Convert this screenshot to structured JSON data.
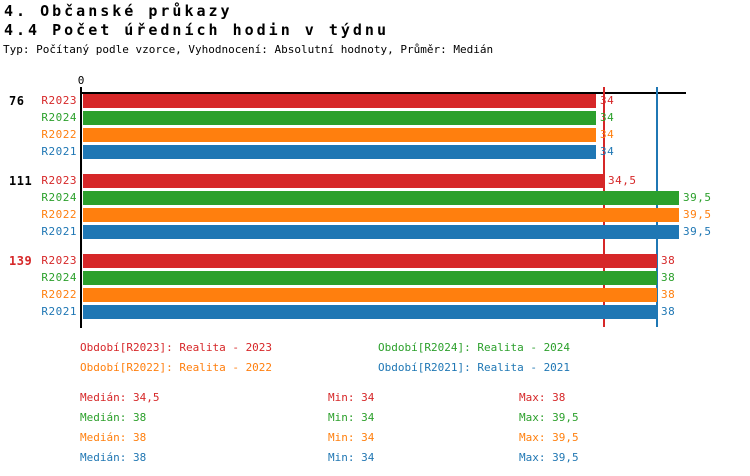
{
  "header": {
    "title_line1": "4. Občanské průkazy",
    "title_line2": "4.4 Počet úředních hodin v týdnu",
    "subtitle": "Typ: Počítaný podle vzorce, Vyhodnocení: Absolutní hodnoty, Průměr: Medián"
  },
  "chart_data": {
    "type": "bar",
    "orientation": "horizontal",
    "title": "4.4 Počet úředních hodin v týdnu",
    "x_axis": {
      "tick_labels": [
        "0"
      ],
      "position": "top",
      "xlim": [
        0,
        40
      ],
      "gridlines": false
    },
    "series_colors": {
      "R2023": "#d62728",
      "R2024": "#2ca02c",
      "R2022": "#ff7f0e",
      "R2021": "#1f77b4"
    },
    "groups": [
      {
        "label": "76",
        "label_color": "#000000",
        "bars": [
          {
            "series": "R2023",
            "value": 34,
            "value_label": "34"
          },
          {
            "series": "R2024",
            "value": 34,
            "value_label": "34"
          },
          {
            "series": "R2022",
            "value": 34,
            "value_label": "34"
          },
          {
            "series": "R2021",
            "value": 34,
            "value_label": "34"
          }
        ]
      },
      {
        "label": "111",
        "label_color": "#000000",
        "bars": [
          {
            "series": "R2023",
            "value": 34.5,
            "value_label": "34,5"
          },
          {
            "series": "R2024",
            "value": 39.5,
            "value_label": "39,5"
          },
          {
            "series": "R2022",
            "value": 39.5,
            "value_label": "39,5"
          },
          {
            "series": "R2021",
            "value": 39.5,
            "value_label": "39,5"
          }
        ]
      },
      {
        "label": "139",
        "label_color": "#d62728",
        "bars": [
          {
            "series": "R2023",
            "value": 38,
            "value_label": "38"
          },
          {
            "series": "R2024",
            "value": 38,
            "value_label": "38"
          },
          {
            "series": "R2022",
            "value": 38,
            "value_label": "38"
          },
          {
            "series": "R2021",
            "value": 38,
            "value_label": "38"
          }
        ]
      }
    ],
    "reference_lines": [
      {
        "value": 34.5,
        "color": "#d62728"
      },
      {
        "value": 38,
        "color": "#1f77b4"
      }
    ]
  },
  "legend": {
    "items": [
      {
        "label": "Období[R2023]: Realita - 2023",
        "color": "#d62728"
      },
      {
        "label": "Období[R2024]: Realita - 2024",
        "color": "#2ca02c"
      },
      {
        "label": "Období[R2022]: Realita - 2022",
        "color": "#ff7f0e"
      },
      {
        "label": "Období[R2021]: Realita - 2021",
        "color": "#1f77b4"
      }
    ]
  },
  "stats": {
    "rows": [
      {
        "median": "Medián: 34,5",
        "min": "Min: 34",
        "max": "Max: 38",
        "color": "#d62728"
      },
      {
        "median": "Medián: 38",
        "min": "Min: 34",
        "max": "Max: 39,5",
        "color": "#2ca02c"
      },
      {
        "median": "Medián: 38",
        "min": "Min: 34",
        "max": "Max: 39,5",
        "color": "#ff7f0e"
      },
      {
        "median": "Medián: 38",
        "min": "Min: 34",
        "max": "Max: 39,5",
        "color": "#1f77b4"
      }
    ]
  }
}
